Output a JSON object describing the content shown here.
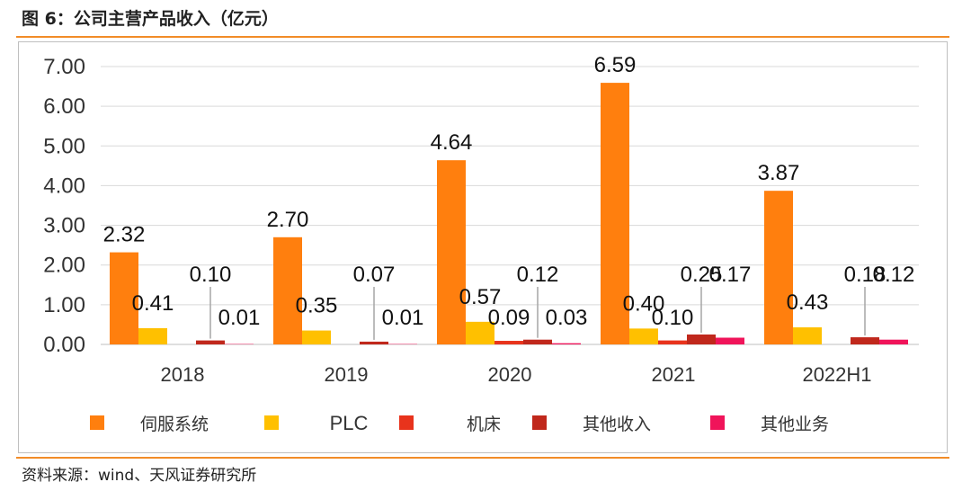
{
  "header": {
    "title": "图 6：公司主营产品收入（亿元）"
  },
  "source": {
    "text": "资料来源：wind、天风证券研究所"
  },
  "chart_data": {
    "type": "bar",
    "title": "公司主营产品收入（亿元）",
    "categories": [
      "2018",
      "2019",
      "2020",
      "2021",
      "2022H1"
    ],
    "ylim": [
      0,
      7
    ],
    "yticks": [
      "0.00",
      "1.00",
      "2.00",
      "3.00",
      "4.00",
      "5.00",
      "6.00",
      "7.00"
    ],
    "grid": true,
    "legend_position": "bottom",
    "series": [
      {
        "name": "伺服系统",
        "color": "#ff7f0e",
        "values": [
          2.32,
          2.7,
          4.64,
          6.59,
          3.87
        ],
        "labels": [
          "2.32",
          "2.70",
          "4.64",
          "6.59",
          "3.87"
        ]
      },
      {
        "name": "PLC",
        "color": "#ffc000",
        "values": [
          0.41,
          0.35,
          0.57,
          0.4,
          0.43
        ],
        "labels": [
          "0.41",
          "0.35",
          "0.57",
          "0.40",
          "0.43"
        ]
      },
      {
        "name": "机床",
        "color": "#e8331c",
        "values": [
          0.0,
          0.0,
          0.09,
          0.1,
          0.0
        ],
        "labels": [
          "",
          "",
          "0.09",
          "0.10",
          ""
        ]
      },
      {
        "name": "其他收入",
        "color": "#c0281c",
        "values": [
          0.1,
          0.07,
          0.12,
          0.25,
          0.18
        ],
        "labels": [
          "0.10",
          "0.07",
          "0.12",
          "0.25",
          "0.18"
        ]
      },
      {
        "name": "其他业务",
        "color": "#f0145a",
        "values": [
          0.01,
          0.01,
          0.03,
          0.17,
          0.12
        ],
        "labels": [
          "0.01",
          "0.01",
          "0.03",
          "0.17",
          "0.12"
        ]
      }
    ]
  }
}
